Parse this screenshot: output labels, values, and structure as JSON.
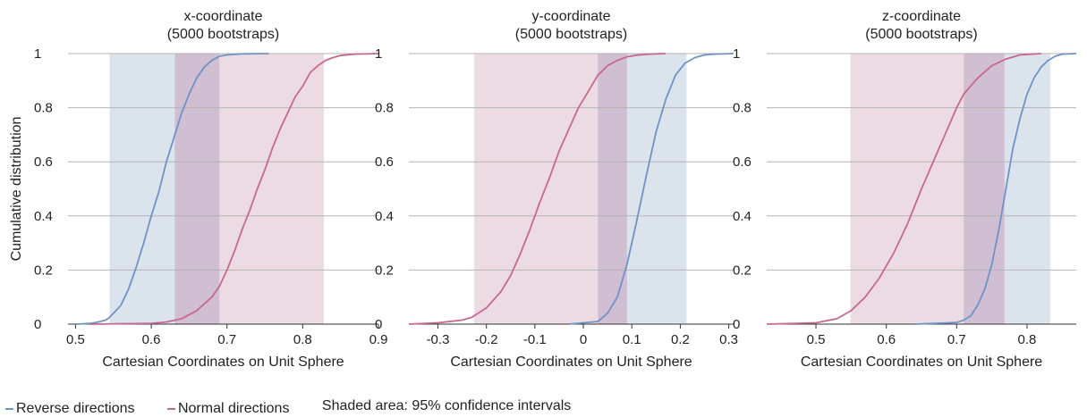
{
  "colors": {
    "reverse": "#6f93c5",
    "normal": "#c8678f",
    "reverse_band": "#dbe3ec",
    "normal_band": "#eddbe3",
    "overlap_band": "#d0bed2",
    "grid": "#b4b4b4",
    "axis": "#333333"
  },
  "chart_data": [
    {
      "type": "line",
      "title": [
        "x-coordinate",
        "(5000 bootstraps)"
      ],
      "xlabel": "Cartesian Coordinates on Unit Sphere",
      "ylabel": "Cumulative distribution",
      "xlim": [
        0.49,
        0.9
      ],
      "ylim": [
        0,
        1
      ],
      "xticks": [
        0.5,
        0.6,
        0.7,
        0.8,
        0.9
      ],
      "xtick_labels": [
        "0.5",
        "0.6",
        "0.7",
        "0.8",
        "0.9"
      ],
      "yticks": [
        0,
        0.2,
        0.4,
        0.6,
        0.8,
        1
      ],
      "ytick_labels": [
        "0",
        "0.2",
        "0.4",
        "0.6",
        "0.8",
        "1"
      ],
      "grid": "horizontal",
      "bands": [
        {
          "series": "reverse",
          "range": [
            0.545,
            0.69
          ]
        },
        {
          "series": "normal",
          "range": [
            0.631,
            0.828
          ]
        }
      ],
      "series": [
        {
          "key": "reverse",
          "x": [
            0.5,
            0.52,
            0.53,
            0.54,
            0.545,
            0.55,
            0.56,
            0.57,
            0.58,
            0.59,
            0.6,
            0.61,
            0.62,
            0.63,
            0.64,
            0.65,
            0.66,
            0.67,
            0.68,
            0.69,
            0.7,
            0.72,
            0.755
          ],
          "y": [
            0,
            0.003,
            0.008,
            0.015,
            0.025,
            0.04,
            0.07,
            0.13,
            0.21,
            0.3,
            0.4,
            0.49,
            0.6,
            0.69,
            0.78,
            0.85,
            0.91,
            0.95,
            0.975,
            0.99,
            0.995,
            0.999,
            1
          ]
        },
        {
          "key": "normal",
          "x": [
            0.52,
            0.6,
            0.62,
            0.64,
            0.66,
            0.68,
            0.69,
            0.7,
            0.71,
            0.72,
            0.73,
            0.74,
            0.75,
            0.76,
            0.77,
            0.78,
            0.79,
            0.8,
            0.81,
            0.82,
            0.83,
            0.84,
            0.85,
            0.87,
            0.9
          ],
          "y": [
            0,
            0.003,
            0.008,
            0.02,
            0.05,
            0.1,
            0.14,
            0.2,
            0.27,
            0.35,
            0.42,
            0.5,
            0.57,
            0.65,
            0.72,
            0.78,
            0.84,
            0.88,
            0.93,
            0.955,
            0.975,
            0.985,
            0.993,
            0.998,
            1
          ]
        }
      ]
    },
    {
      "type": "line",
      "title": [
        "y-coordinate",
        "(5000 bootstraps)"
      ],
      "xlabel": "Cartesian Coordinates on Unit Sphere",
      "ylabel": "",
      "xlim": [
        -0.36,
        0.31
      ],
      "ylim": [
        0,
        1
      ],
      "xticks": [
        -0.3,
        -0.2,
        -0.1,
        0,
        0.1,
        0.2,
        0.3
      ],
      "xtick_labels": [
        "-0.3",
        "-0.2",
        "-0.1",
        "0",
        "0.1",
        "0.2",
        "0.3"
      ],
      "yticks": [
        0,
        0.2,
        0.4,
        0.6,
        0.8,
        1
      ],
      "ytick_labels": [
        "0",
        "0.2",
        "0.4",
        "0.6",
        "0.8",
        "1"
      ],
      "grid": "horizontal",
      "bands": [
        {
          "series": "normal",
          "range": [
            -0.225,
            0.09
          ]
        },
        {
          "series": "reverse",
          "range": [
            0.03,
            0.213
          ]
        }
      ],
      "series": [
        {
          "key": "normal",
          "x": [
            -0.36,
            -0.3,
            -0.25,
            -0.23,
            -0.2,
            -0.17,
            -0.15,
            -0.13,
            -0.11,
            -0.09,
            -0.07,
            -0.05,
            -0.03,
            -0.01,
            0.01,
            0.03,
            0.05,
            0.07,
            0.09,
            0.11,
            0.13,
            0.15,
            0.17
          ],
          "y": [
            0,
            0.005,
            0.015,
            0.025,
            0.06,
            0.12,
            0.18,
            0.26,
            0.35,
            0.45,
            0.54,
            0.64,
            0.72,
            0.8,
            0.86,
            0.92,
            0.955,
            0.975,
            0.988,
            0.994,
            0.997,
            0.999,
            1
          ]
        },
        {
          "key": "reverse",
          "x": [
            -0.03,
            0.03,
            0.05,
            0.07,
            0.09,
            0.11,
            0.13,
            0.15,
            0.17,
            0.19,
            0.21,
            0.23,
            0.25,
            0.27,
            0.31
          ],
          "y": [
            0,
            0.01,
            0.04,
            0.1,
            0.22,
            0.38,
            0.55,
            0.71,
            0.83,
            0.92,
            0.965,
            0.985,
            0.995,
            0.998,
            1
          ]
        }
      ]
    },
    {
      "type": "line",
      "title": [
        "z-coordinate",
        "(5000 bootstraps)"
      ],
      "xlabel": "Cartesian Coordinates on Unit Sphere",
      "ylabel": "",
      "xlim": [
        0.43,
        0.87
      ],
      "ylim": [
        0,
        1
      ],
      "xticks": [
        0.5,
        0.6,
        0.7,
        0.8
      ],
      "xtick_labels": [
        "0.5",
        "0.6",
        "0.7",
        "0.8"
      ],
      "yticks": [
        0,
        0.2,
        0.4,
        0.6,
        0.8,
        1
      ],
      "ytick_labels": [
        "0",
        "0.2",
        "0.4",
        "0.6",
        "0.8",
        "1"
      ],
      "grid": "horizontal",
      "bands": [
        {
          "series": "normal",
          "range": [
            0.549,
            0.768
          ]
        },
        {
          "series": "reverse",
          "range": [
            0.71,
            0.833
          ]
        }
      ],
      "series": [
        {
          "key": "normal",
          "x": [
            0.43,
            0.5,
            0.53,
            0.55,
            0.57,
            0.59,
            0.61,
            0.63,
            0.65,
            0.67,
            0.69,
            0.7,
            0.71,
            0.73,
            0.75,
            0.77,
            0.79,
            0.82
          ],
          "y": [
            0,
            0.005,
            0.02,
            0.05,
            0.1,
            0.17,
            0.26,
            0.37,
            0.5,
            0.62,
            0.74,
            0.8,
            0.85,
            0.91,
            0.955,
            0.98,
            0.995,
            1
          ]
        },
        {
          "key": "reverse",
          "x": [
            0.64,
            0.7,
            0.71,
            0.72,
            0.73,
            0.74,
            0.75,
            0.76,
            0.77,
            0.78,
            0.79,
            0.8,
            0.81,
            0.82,
            0.83,
            0.84,
            0.85,
            0.87
          ],
          "y": [
            0,
            0.006,
            0.015,
            0.03,
            0.07,
            0.13,
            0.22,
            0.35,
            0.5,
            0.65,
            0.76,
            0.85,
            0.91,
            0.95,
            0.975,
            0.99,
            0.998,
            1
          ]
        }
      ]
    }
  ],
  "legend": {
    "reverse_label": "Reverse directions",
    "normal_label": "Normal directions",
    "note": "Shaded area: 95% confidence intervals"
  }
}
